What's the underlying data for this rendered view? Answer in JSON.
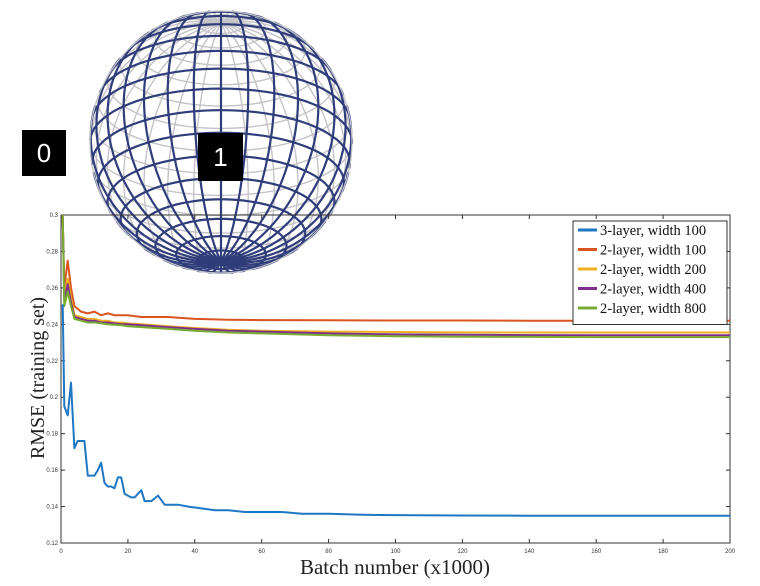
{
  "markers": [
    "0",
    "1"
  ],
  "chart_data": {
    "type": "line",
    "title": "",
    "xlabel": "Batch number (x1000)",
    "ylabel": "RMSE (training set)",
    "xlim": [
      0,
      200
    ],
    "ylim": [
      0.12,
      0.3
    ],
    "xticks": [
      0,
      20,
      40,
      60,
      80,
      100,
      120,
      140,
      160,
      180,
      200
    ],
    "yticks": [
      0.12,
      0.14,
      0.16,
      0.18,
      0.2,
      0.22,
      0.24,
      0.26,
      0.28,
      0.3
    ],
    "xtick_labels": [
      "0",
      "20",
      "40",
      "60",
      "80",
      "100",
      "120",
      "140",
      "160",
      "180",
      "200"
    ],
    "ytick_labels": [
      "0.12",
      "0.14",
      "0.16",
      "0.18",
      "0.2",
      "0.22",
      "0.24",
      "0.26",
      "0.28",
      "0.3"
    ],
    "legend_position": "top-right",
    "grid": false,
    "series": [
      {
        "name": "3-layer, width 100",
        "color": "#1f77c4",
        "x": [
          0.5,
          1,
          2,
          3,
          3.5,
          4,
          5,
          6,
          7,
          8,
          9,
          10,
          11,
          12,
          13,
          14,
          15,
          16,
          17,
          18,
          19,
          20,
          21,
          22,
          24,
          25,
          27,
          29,
          31,
          33,
          35,
          38,
          42,
          46,
          50,
          55,
          60,
          66,
          72,
          80,
          90,
          100,
          120,
          140,
          160,
          180,
          200
        ],
        "y": [
          0.251,
          0.195,
          0.19,
          0.208,
          0.19,
          0.172,
          0.176,
          0.176,
          0.176,
          0.157,
          0.157,
          0.157,
          0.16,
          0.164,
          0.153,
          0.151,
          0.151,
          0.15,
          0.156,
          0.156,
          0.147,
          0.146,
          0.145,
          0.145,
          0.149,
          0.143,
          0.143,
          0.146,
          0.141,
          0.141,
          0.141,
          0.14,
          0.139,
          0.138,
          0.138,
          0.137,
          0.137,
          0.137,
          0.136,
          0.136,
          0.1355,
          0.1353,
          0.1351,
          0.135,
          0.135,
          0.135,
          0.135
        ]
      },
      {
        "name": "2-layer, width 100",
        "color": "#d9541e",
        "x": [
          0.5,
          1,
          2,
          3,
          4,
          6,
          8,
          10,
          12,
          14,
          16,
          18,
          20,
          24,
          28,
          32,
          40,
          50,
          60,
          80,
          100,
          120,
          140,
          160,
          180,
          200
        ],
        "y": [
          0.3,
          0.26,
          0.275,
          0.26,
          0.25,
          0.247,
          0.246,
          0.247,
          0.245,
          0.246,
          0.245,
          0.245,
          0.245,
          0.244,
          0.244,
          0.244,
          0.243,
          0.2425,
          0.2423,
          0.2422,
          0.2421,
          0.2421,
          0.242,
          0.242,
          0.242,
          0.242
        ]
      },
      {
        "name": "2-layer, width 200",
        "color": "#edb120",
        "x": [
          0.5,
          1,
          2,
          3,
          4,
          6,
          8,
          10,
          12,
          14,
          16,
          18,
          20,
          24,
          28,
          32,
          40,
          50,
          60,
          80,
          100,
          120,
          140,
          160,
          180,
          200
        ],
        "y": [
          0.3,
          0.255,
          0.265,
          0.255,
          0.245,
          0.244,
          0.243,
          0.243,
          0.242,
          0.242,
          0.241,
          0.241,
          0.2405,
          0.24,
          0.2395,
          0.239,
          0.238,
          0.237,
          0.2365,
          0.236,
          0.2358,
          0.2356,
          0.2355,
          0.2355,
          0.2355,
          0.2355
        ]
      },
      {
        "name": "2-layer, width 400",
        "color": "#7e2f8e",
        "x": [
          0.5,
          1,
          2,
          3,
          4,
          6,
          8,
          10,
          12,
          14,
          16,
          18,
          20,
          24,
          28,
          32,
          40,
          50,
          60,
          80,
          100,
          120,
          140,
          160,
          180,
          200
        ],
        "y": [
          0.3,
          0.253,
          0.262,
          0.252,
          0.244,
          0.243,
          0.242,
          0.242,
          0.241,
          0.241,
          0.2405,
          0.24,
          0.24,
          0.2395,
          0.239,
          0.2385,
          0.2375,
          0.2365,
          0.236,
          0.235,
          0.2345,
          0.2343,
          0.2341,
          0.234,
          0.234,
          0.234
        ]
      },
      {
        "name": "2-layer, width 800",
        "color": "#77ac30",
        "x": [
          0.5,
          1,
          2,
          3,
          4,
          6,
          8,
          10,
          12,
          14,
          16,
          18,
          20,
          24,
          28,
          32,
          40,
          50,
          60,
          80,
          100,
          120,
          140,
          160,
          180,
          200
        ],
        "y": [
          0.3,
          0.25,
          0.258,
          0.25,
          0.243,
          0.242,
          0.241,
          0.241,
          0.2405,
          0.24,
          0.2398,
          0.2395,
          0.239,
          0.2385,
          0.238,
          0.2375,
          0.2365,
          0.2355,
          0.235,
          0.234,
          0.2335,
          0.2332,
          0.2331,
          0.233,
          0.233,
          0.233
        ]
      }
    ]
  }
}
